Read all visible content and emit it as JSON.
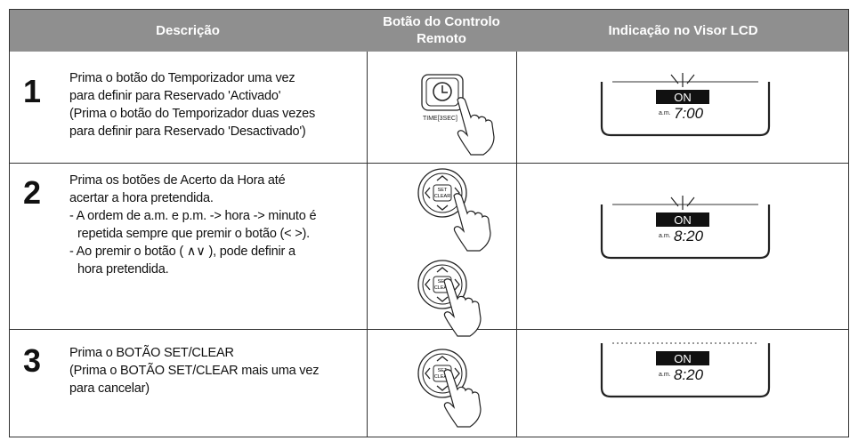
{
  "table": {
    "headers": [
      "Descrição",
      "Botão do Controlo Remoto",
      "Indicação no Visor LCD"
    ],
    "rows": [
      {
        "number": "1",
        "description": [
          "Prima o botão do Temporizador uma vez",
          "para definir para Reservado 'Activado'",
          "(Prima o botão do Temporizador duas vezes",
          "para definir para Reservado 'Desactivado')"
        ],
        "buttons": [
          {
            "label": "TIME[3SEC]"
          }
        ],
        "display": {
          "indicator": "ON",
          "period": "a.m.",
          "time": "7:00"
        }
      },
      {
        "number": "2",
        "description": [
          "Prima os botões de Acerto da Hora até",
          "acertar a hora pretendida.",
          "- A ordem de a.m. e p.m. -> hora -> minuto é",
          "repetida sempre que premir o botão (< >).",
          "- Ao premir o botão ( ∧∨ ), pode definir a",
          "hora pretendida."
        ],
        "buttons": [
          {
            "label": [
              "SET",
              "CLEAR"
            ]
          },
          {
            "label": [
              "SET",
              "CLEAR"
            ]
          }
        ],
        "display": {
          "indicator": "ON",
          "period": "a.m.",
          "time": "8:20"
        }
      },
      {
        "number": "3",
        "description": [
          "Prima o BOTÃO SET/CLEAR",
          "(Prima o BOTÃO SET/CLEAR mais uma vez",
          "para cancelar)"
        ],
        "buttons": [
          {
            "label": [
              "SET",
              "CLEAR"
            ]
          }
        ],
        "display": {
          "indicator": "ON",
          "period": "a.m.",
          "time": "8:20"
        }
      }
    ]
  }
}
